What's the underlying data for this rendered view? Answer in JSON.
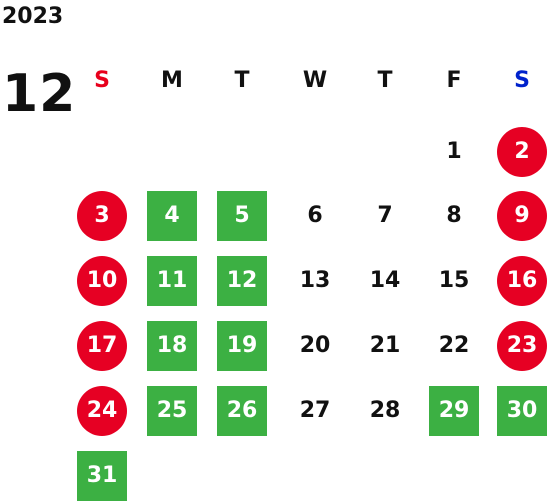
{
  "calendar": {
    "year": "2023",
    "month": "12",
    "colors": {
      "sunday_label": "#e8001c",
      "saturday_label": "#0022cc",
      "weekday_label": "#111111",
      "red_circle": "#e60023",
      "green_square": "#3cb043",
      "plain_text": "#111111"
    },
    "weekdays": [
      "S",
      "M",
      "T",
      "W",
      "T",
      "F",
      "S"
    ],
    "weeks": [
      [
        null,
        null,
        null,
        null,
        null,
        {
          "label": "1",
          "style": "plain"
        },
        {
          "label": "2",
          "style": "red-circle"
        }
      ],
      [
        {
          "label": "3",
          "style": "red-circle"
        },
        {
          "label": "4",
          "style": "green-square"
        },
        {
          "label": "5",
          "style": "green-square"
        },
        {
          "label": "6",
          "style": "plain"
        },
        {
          "label": "7",
          "style": "plain"
        },
        {
          "label": "8",
          "style": "plain"
        },
        {
          "label": "9",
          "style": "red-circle"
        }
      ],
      [
        {
          "label": "10",
          "style": "red-circle"
        },
        {
          "label": "11",
          "style": "green-square"
        },
        {
          "label": "12",
          "style": "green-square"
        },
        {
          "label": "13",
          "style": "plain"
        },
        {
          "label": "14",
          "style": "plain"
        },
        {
          "label": "15",
          "style": "plain"
        },
        {
          "label": "16",
          "style": "red-circle"
        }
      ],
      [
        {
          "label": "17",
          "style": "red-circle"
        },
        {
          "label": "18",
          "style": "green-square"
        },
        {
          "label": "19",
          "style": "green-square"
        },
        {
          "label": "20",
          "style": "plain"
        },
        {
          "label": "21",
          "style": "plain"
        },
        {
          "label": "22",
          "style": "plain"
        },
        {
          "label": "23",
          "style": "red-circle"
        }
      ],
      [
        {
          "label": "24",
          "style": "red-circle"
        },
        {
          "label": "25",
          "style": "green-square"
        },
        {
          "label": "26",
          "style": "green-square"
        },
        {
          "label": "27",
          "style": "plain"
        },
        {
          "label": "28",
          "style": "plain"
        },
        {
          "label": "29",
          "style": "green-square"
        },
        {
          "label": "30",
          "style": "green-square"
        }
      ],
      [
        {
          "label": "31",
          "style": "green-square"
        },
        null,
        null,
        null,
        null,
        null,
        null
      ]
    ]
  }
}
